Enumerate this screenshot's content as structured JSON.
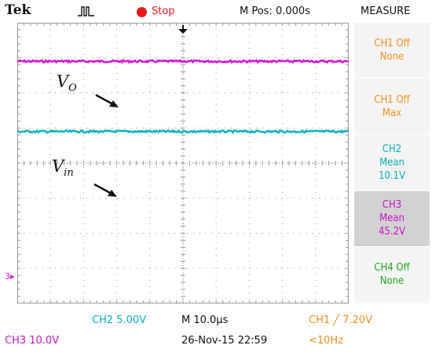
{
  "header": {
    "brand": "Tek",
    "trigger_state_icon": "trigger-pulse-icon",
    "run_state": "Stop",
    "run_state_color": "#e8181b",
    "horizontal_position": "M Pos: 0.000s",
    "menu_title": "MEASURE"
  },
  "measure_panel": [
    {
      "line1": "CH1 Off",
      "line2": "None",
      "line3": "",
      "color": "#f0901e",
      "selected": false
    },
    {
      "line1": "CH1 Off",
      "line2": "Max",
      "line3": "",
      "color": "#f0901e",
      "selected": false
    },
    {
      "line1": "CH2",
      "line2": "Mean",
      "line3": "10.1V",
      "color": "#0fb0b8",
      "selected": false
    },
    {
      "line1": "CH3",
      "line2": "Mean",
      "line3": "45.2V",
      "color": "#c814c8",
      "selected": true
    },
    {
      "line1": "CH4 Off",
      "line2": "None",
      "line3": "",
      "color": "#1fa81f",
      "selected": false
    }
  ],
  "screen": {
    "ch3_ground_marker": "3▸",
    "annotations": {
      "vo_main": "V",
      "vo_sub": "O",
      "vin_main": "V",
      "vin_sub": "in"
    },
    "traces": [
      {
        "channel": "CH3",
        "color": "#d21bd2",
        "level_divisions": 2.9
      },
      {
        "channel": "CH2",
        "color": "#14b4b9",
        "level_divisions": 0.9
      }
    ]
  },
  "footer": {
    "ch2_scale": "CH2  5.00V",
    "timebase": "M 10.0µs",
    "trigger": "CH1 ╱ 7.20V",
    "ch3_scale": "CH3  10.0V",
    "datetime": "26-Nov-15 22:59",
    "trigger_freq": "<10Hz"
  },
  "colors": {
    "ch1": "#f0901e",
    "ch2": "#0fb0b8",
    "ch3": "#c814c8",
    "ch4": "#1fa81f",
    "grid": "#9a9a9a"
  }
}
